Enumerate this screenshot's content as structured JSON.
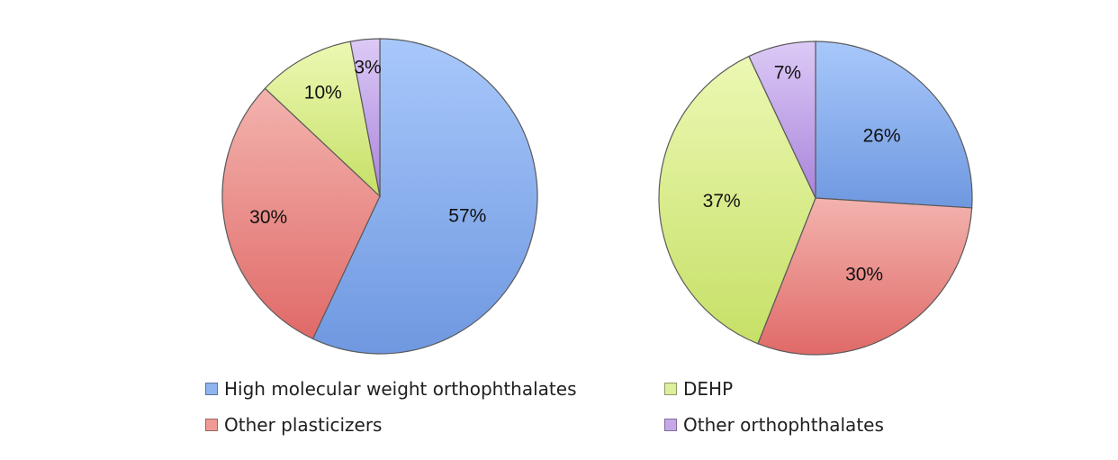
{
  "chart_data": [
    {
      "type": "pie",
      "categories": [
        "High molecular weight orthophthalates",
        "Other plasticizers",
        "DEHP",
        "Other orthophthalates"
      ],
      "values": [
        57,
        30,
        10,
        3
      ],
      "labels": [
        "57%",
        "30%",
        "10%",
        "3%"
      ],
      "start_angle": "top, clockwise"
    },
    {
      "type": "pie",
      "categories": [
        "High molecular weight orthophthalates",
        "Other plasticizers",
        "DEHP",
        "Other orthophthalates"
      ],
      "values": [
        26,
        30,
        37,
        7
      ],
      "labels": [
        "26%",
        "30%",
        "37%",
        "7%"
      ],
      "start_angle": "top, clockwise"
    }
  ],
  "legend": {
    "placement": "bottom",
    "items": [
      {
        "label": "High molecular weight orthophthalates",
        "color": "#8fb4ee"
      },
      {
        "label": "DEHP",
        "color": "#dcef9a"
      },
      {
        "label": "Other plasticizers",
        "color": "#ef9a96"
      },
      {
        "label": "Other orthophthalates",
        "color": "#c6a8e8"
      }
    ]
  },
  "colors": {
    "High molecular weight orthophthalates": [
      "#a8c8fb",
      "#6f98e0"
    ],
    "Other plasticizers": [
      "#f3b3ae",
      "#e06a68"
    ],
    "DEHP": [
      "#ecf8b4",
      "#c6e066"
    ],
    "Other orthophthalates": [
      "#dccaf6",
      "#a984db"
    ]
  }
}
